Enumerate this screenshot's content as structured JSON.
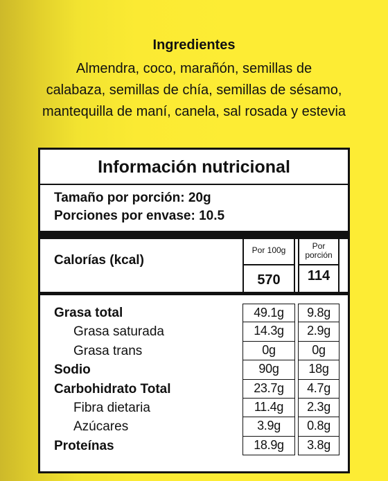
{
  "ingredients": {
    "title": "Ingredientes",
    "lines": [
      "Almendra, coco, marañón, semillas de",
      "calabaza,  semillas de chía, semillas de sésamo,",
      "mantequilla de  maní, canela, sal rosada y estevia"
    ]
  },
  "nutrition": {
    "title": "Información nutricional",
    "serving_size": "Tamaño por porción: 20g",
    "servings_per_container": "Porciones por envase: 10.5",
    "calories_label": "Calorías (kcal)",
    "col1_header": "Por 100g",
    "col2_header_line1": "Por",
    "col2_header_line2": "porción",
    "calories_100g": "570",
    "calories_portion": "114",
    "rows": [
      {
        "name": "Grasa total",
        "per100": "49.1g",
        "portion": "9.8g"
      },
      {
        "name": "Grasa saturada",
        "per100": "14.3g",
        "portion": "2.9g"
      },
      {
        "name": "Grasa trans",
        "per100": "0g",
        "portion": "0g"
      },
      {
        "name": "Sodio",
        "per100": "90g",
        "portion": "18g"
      },
      {
        "name": "Carbohidrato Total",
        "per100": "23.7g",
        "portion": "4.7g"
      },
      {
        "name": "Fibra dietaria",
        "per100": "11.4g",
        "portion": "2.3g"
      },
      {
        "name": "Azúcares",
        "per100": "3.9g",
        "portion": "0.8g"
      },
      {
        "name": "Proteínas",
        "per100": "18.9g",
        "portion": "3.8g"
      }
    ]
  }
}
